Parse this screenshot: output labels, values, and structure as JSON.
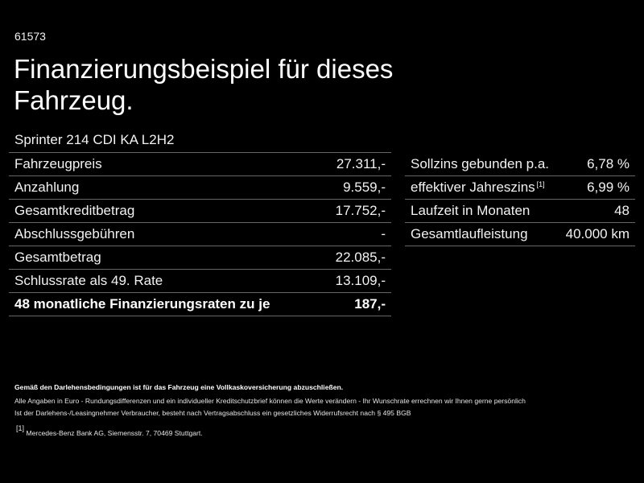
{
  "ref_id": "61573",
  "title": "Finanzierungsbeispiel für dieses Fahrzeug.",
  "model": "Sprinter 214 CDI KA L2H2",
  "left_table": {
    "rows": [
      {
        "label": "Fahrzeugpreis",
        "value": "27.311,-"
      },
      {
        "label": "Anzahlung",
        "value": "9.559,-"
      },
      {
        "label": "Gesamtkreditbetrag",
        "value": "17.752,-"
      },
      {
        "label": "Abschlussgebühren",
        "value": "-"
      },
      {
        "label": "Gesamtbetrag",
        "value": "22.085,-"
      },
      {
        "label": "Schlussrate als 49. Rate",
        "value": "13.109,-"
      },
      {
        "label": "48 monatliche Finanzierungsraten zu je",
        "value": "187,-"
      }
    ]
  },
  "right_table": {
    "rows": [
      {
        "label": "Sollzins gebunden p.a.",
        "value": "6,78 %"
      },
      {
        "label": "effektiver Jahreszins",
        "footnote": "[1]",
        "value": "6,99 %"
      },
      {
        "label": "Laufzeit in Monaten",
        "value": "48"
      },
      {
        "label": "Gesamtlaufleistung",
        "value": "40.000 km"
      }
    ]
  },
  "footer": {
    "insurance_note": "Gemäß den Darlehensbedingungen ist für das Fahrzeug eine Vollkaskoversicherung abzuschließen.",
    "disclaimer_1": "Alle Angaben in Euro - Rundungsdifferenzen und ein individueller Kreditschutzbrief können die Werte verändern - Ihr Wunschrate errechnen wir Ihnen gerne persönlich",
    "disclaimer_2": "Ist der Darlehens-/Leasingnehmer Verbraucher, besteht nach Vertragsabschluss ein gesetzliches Widerrufsrecht nach § 495 BGB",
    "footnote_marker": "[1]",
    "footnote_text": "Mercedes-Benz Bank AG, Siemensstr. 7, 70469 Stuttgart."
  }
}
